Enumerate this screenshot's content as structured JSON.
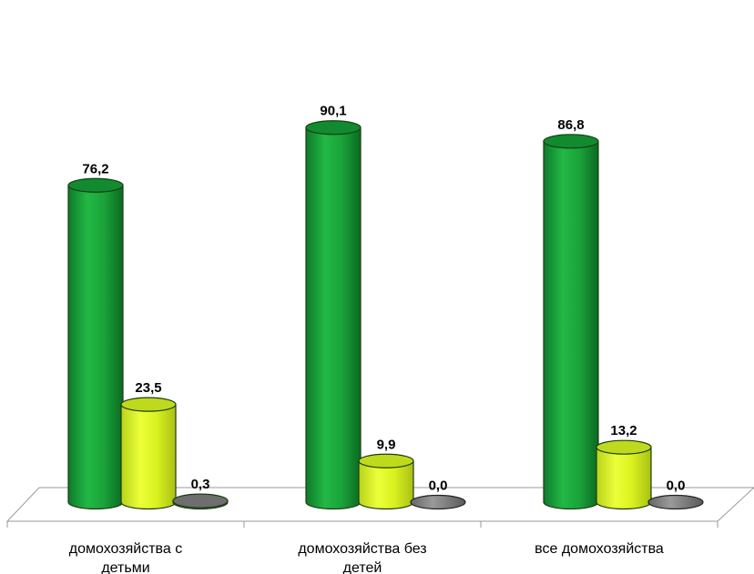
{
  "chart_data": {
    "type": "bar",
    "style": "3d-cylinder",
    "title": "",
    "xlabel": "",
    "ylabel": "",
    "categories": [
      [
        "домохозяйства с",
        "детьми"
      ],
      [
        "домохозяйства без",
        "детей"
      ],
      [
        "все домохозяйства"
      ]
    ],
    "series": [
      {
        "values": [
          76.2,
          90.1,
          86.8
        ],
        "labels": [
          "76,2",
          "90,1",
          "86,8"
        ],
        "color": "#1aa33a"
      },
      {
        "values": [
          23.5,
          9.9,
          13.2
        ],
        "labels": [
          "23,5",
          "9,9",
          "13,2"
        ],
        "color": "#d9f21f"
      },
      {
        "values": [
          0.3,
          0.0,
          0.0
        ],
        "labels": [
          "0,3",
          "0,0",
          "0,0"
        ],
        "color": "#808080"
      }
    ],
    "ylim": [
      0,
      100
    ],
    "grid": false,
    "legend": "none"
  }
}
